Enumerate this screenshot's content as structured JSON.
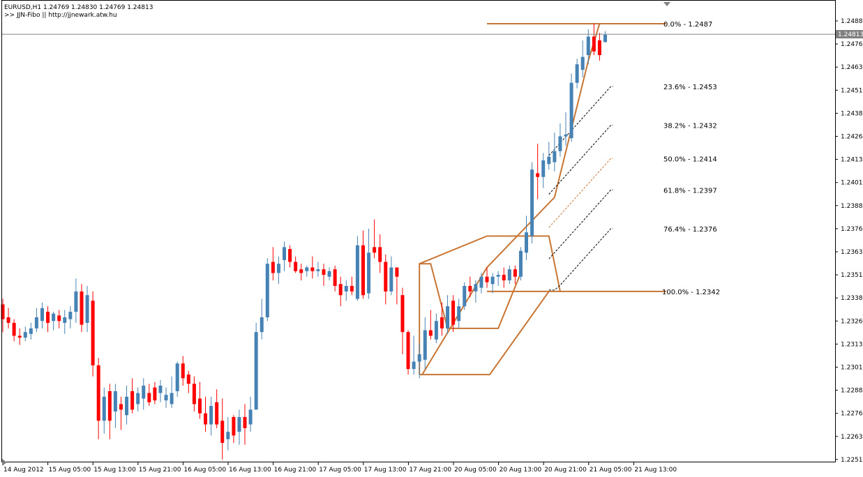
{
  "header": {
    "line1": "EURUSD,H1  1.24769 1.24830 1.24769 1.24813",
    "line2": ">> JJN-Fibo || http://jjnewark.atw.hu"
  },
  "colors": {
    "bull": "#4682B4",
    "bear": "#FF0000",
    "fib_band": "#C87533",
    "fib_dash": "#000000",
    "fib_mid": "#C87533",
    "axis": "#000000",
    "price_line": "#808080"
  },
  "chart_data": {
    "type": "candlestick",
    "symbol": "EURUSD",
    "timeframe": "H1",
    "grid": false,
    "ylim": [
      1.2247,
      1.2491
    ],
    "current_price": 1.24813,
    "y_ticks": [
      1.24885,
      1.2476,
      1.24635,
      1.2451,
      1.24385,
      1.2426,
      1.24135,
      1.2401,
      1.23885,
      1.2376,
      1.23635,
      1.2351,
      1.23385,
      1.2326,
      1.23135,
      1.2301,
      1.22885,
      1.2276,
      1.22635,
      1.2251
    ],
    "y_tick_labels": [
      "1.24885",
      "1.24760",
      "1.24635",
      "1.24510",
      "1.24385",
      "1.24260",
      "1.24135",
      "1.24010",
      "1.23885",
      "1.23760",
      "1.23635",
      "1.23510",
      "1.23385",
      "1.23260",
      "1.23135",
      "1.23010",
      "1.22885",
      "1.22760",
      "1.22635",
      "1.22510"
    ],
    "current_price_label": "1.24813",
    "x_tick_labels": [
      "14 Aug 2012",
      "15 Aug 05:00",
      "15 Aug 13:00",
      "15 Aug 21:00",
      "16 Aug 05:00",
      "16 Aug 13:00",
      "16 Aug 21:00",
      "17 Aug 05:00",
      "17 Aug 13:00",
      "17 Aug 21:00",
      "20 Aug 05:00",
      "20 Aug 13:00",
      "20 Aug 21:00",
      "21 Aug 05:00",
      "21 Aug 13:00"
    ],
    "candles": [
      {
        "o": 1.2335,
        "h": 1.2338,
        "l": 1.232,
        "c": 1.2327
      },
      {
        "o": 1.2328,
        "h": 1.2333,
        "l": 1.2322,
        "c": 1.2325
      },
      {
        "o": 1.2325,
        "h": 1.2327,
        "l": 1.2315,
        "c": 1.2318
      },
      {
        "o": 1.2318,
        "h": 1.2322,
        "l": 1.2313,
        "c": 1.2317
      },
      {
        "o": 1.2317,
        "h": 1.2323,
        "l": 1.2315,
        "c": 1.232
      },
      {
        "o": 1.2319,
        "h": 1.2325,
        "l": 1.2316,
        "c": 1.2322
      },
      {
        "o": 1.2322,
        "h": 1.2333,
        "l": 1.232,
        "c": 1.2328
      },
      {
        "o": 1.2326,
        "h": 1.2336,
        "l": 1.2322,
        "c": 1.2333
      },
      {
        "o": 1.2331,
        "h": 1.2334,
        "l": 1.232,
        "c": 1.2325
      },
      {
        "o": 1.2326,
        "h": 1.2331,
        "l": 1.2321,
        "c": 1.233
      },
      {
        "o": 1.2329,
        "h": 1.2332,
        "l": 1.2322,
        "c": 1.2326
      },
      {
        "o": 1.2325,
        "h": 1.2332,
        "l": 1.2319,
        "c": 1.2328
      },
      {
        "o": 1.2327,
        "h": 1.2334,
        "l": 1.2322,
        "c": 1.2331
      },
      {
        "o": 1.2331,
        "h": 1.2349,
        "l": 1.2325,
        "c": 1.2342
      },
      {
        "o": 1.2342,
        "h": 1.2346,
        "l": 1.232,
        "c": 1.2324
      },
      {
        "o": 1.2325,
        "h": 1.2345,
        "l": 1.232,
        "c": 1.234
      },
      {
        "o": 1.2337,
        "h": 1.2342,
        "l": 1.2296,
        "c": 1.2302
      },
      {
        "o": 1.2302,
        "h": 1.2306,
        "l": 1.2262,
        "c": 1.2272
      },
      {
        "o": 1.2272,
        "h": 1.229,
        "l": 1.2265,
        "c": 1.2285
      },
      {
        "o": 1.2288,
        "h": 1.2292,
        "l": 1.2262,
        "c": 1.2272
      },
      {
        "o": 1.2277,
        "h": 1.2292,
        "l": 1.2268,
        "c": 1.2288
      },
      {
        "o": 1.2281,
        "h": 1.2285,
        "l": 1.2267,
        "c": 1.2278
      },
      {
        "o": 1.2275,
        "h": 1.2291,
        "l": 1.227,
        "c": 1.2285
      },
      {
        "o": 1.2288,
        "h": 1.2295,
        "l": 1.2276,
        "c": 1.2278
      },
      {
        "o": 1.2281,
        "h": 1.229,
        "l": 1.2277,
        "c": 1.2287
      },
      {
        "o": 1.2284,
        "h": 1.2295,
        "l": 1.2278,
        "c": 1.2291
      },
      {
        "o": 1.2287,
        "h": 1.2292,
        "l": 1.228,
        "c": 1.2282
      },
      {
        "o": 1.229,
        "h": 1.2293,
        "l": 1.2281,
        "c": 1.2283
      },
      {
        "o": 1.2287,
        "h": 1.2294,
        "l": 1.2282,
        "c": 1.2291
      },
      {
        "o": 1.2283,
        "h": 1.229,
        "l": 1.2279,
        "c": 1.2286
      },
      {
        "o": 1.2281,
        "h": 1.2296,
        "l": 1.2279,
        "c": 1.2287
      },
      {
        "o": 1.2288,
        "h": 1.2304,
        "l": 1.2285,
        "c": 1.2303
      },
      {
        "o": 1.2303,
        "h": 1.2307,
        "l": 1.2291,
        "c": 1.2295
      },
      {
        "o": 1.2297,
        "h": 1.2299,
        "l": 1.2287,
        "c": 1.2292
      },
      {
        "o": 1.2292,
        "h": 1.2296,
        "l": 1.2277,
        "c": 1.2281
      },
      {
        "o": 1.2284,
        "h": 1.2293,
        "l": 1.2273,
        "c": 1.2276
      },
      {
        "o": 1.2276,
        "h": 1.2285,
        "l": 1.2266,
        "c": 1.227
      },
      {
        "o": 1.227,
        "h": 1.2285,
        "l": 1.2264,
        "c": 1.228
      },
      {
        "o": 1.2282,
        "h": 1.2289,
        "l": 1.2268,
        "c": 1.227
      },
      {
        "o": 1.2272,
        "h": 1.2284,
        "l": 1.2251,
        "c": 1.226
      },
      {
        "o": 1.2262,
        "h": 1.2274,
        "l": 1.2256,
        "c": 1.2266
      },
      {
        "o": 1.2274,
        "h": 1.2275,
        "l": 1.226,
        "c": 1.2264
      },
      {
        "o": 1.2266,
        "h": 1.2278,
        "l": 1.2259,
        "c": 1.2274
      },
      {
        "o": 1.2274,
        "h": 1.2281,
        "l": 1.2259,
        "c": 1.2268
      },
      {
        "o": 1.227,
        "h": 1.2285,
        "l": 1.2266,
        "c": 1.2278
      },
      {
        "o": 1.2278,
        "h": 1.2325,
        "l": 1.2278,
        "c": 1.232
      },
      {
        "o": 1.232,
        "h": 1.2338,
        "l": 1.2316,
        "c": 1.2328
      },
      {
        "o": 1.2328,
        "h": 1.236,
        "l": 1.2326,
        "c": 1.2357
      },
      {
        "o": 1.2358,
        "h": 1.2366,
        "l": 1.2348,
        "c": 1.2352
      },
      {
        "o": 1.2352,
        "h": 1.2361,
        "l": 1.2346,
        "c": 1.2357
      },
      {
        "o": 1.2359,
        "h": 1.2369,
        "l": 1.2353,
        "c": 1.2366
      },
      {
        "o": 1.2365,
        "h": 1.2367,
        "l": 1.2355,
        "c": 1.2358
      },
      {
        "o": 1.2358,
        "h": 1.2361,
        "l": 1.2352,
        "c": 1.2353
      },
      {
        "o": 1.2354,
        "h": 1.2357,
        "l": 1.2348,
        "c": 1.2352
      },
      {
        "o": 1.2353,
        "h": 1.2356,
        "l": 1.235,
        "c": 1.2355
      },
      {
        "o": 1.2355,
        "h": 1.2361,
        "l": 1.2349,
        "c": 1.2353
      },
      {
        "o": 1.2353,
        "h": 1.2358,
        "l": 1.235,
        "c": 1.2354
      },
      {
        "o": 1.2354,
        "h": 1.2357,
        "l": 1.2345,
        "c": 1.2351
      },
      {
        "o": 1.235,
        "h": 1.2355,
        "l": 1.2348,
        "c": 1.2353
      },
      {
        "o": 1.2354,
        "h": 1.2356,
        "l": 1.2342,
        "c": 1.2345
      },
      {
        "o": 1.2346,
        "h": 1.235,
        "l": 1.2334,
        "c": 1.234
      },
      {
        "o": 1.2342,
        "h": 1.2348,
        "l": 1.2337,
        "c": 1.2345
      },
      {
        "o": 1.2345,
        "h": 1.235,
        "l": 1.234,
        "c": 1.2342
      },
      {
        "o": 1.2338,
        "h": 1.2372,
        "l": 1.2337,
        "c": 1.2367
      },
      {
        "o": 1.2367,
        "h": 1.2375,
        "l": 1.2338,
        "c": 1.234
      },
      {
        "o": 1.2341,
        "h": 1.2376,
        "l": 1.2338,
        "c": 1.2363
      },
      {
        "o": 1.2366,
        "h": 1.2381,
        "l": 1.236,
        "c": 1.2363
      },
      {
        "o": 1.2366,
        "h": 1.2373,
        "l": 1.2352,
        "c": 1.2358
      },
      {
        "o": 1.2358,
        "h": 1.2362,
        "l": 1.2335,
        "c": 1.2342
      },
      {
        "o": 1.2342,
        "h": 1.2361,
        "l": 1.234,
        "c": 1.2355
      },
      {
        "o": 1.2355,
        "h": 1.2355,
        "l": 1.2335,
        "c": 1.235
      },
      {
        "o": 1.234,
        "h": 1.2344,
        "l": 1.2308,
        "c": 1.232
      },
      {
        "o": 1.232,
        "h": 1.2321,
        "l": 1.2297,
        "c": 1.23
      },
      {
        "o": 1.23,
        "h": 1.2318,
        "l": 1.2297,
        "c": 1.2304
      },
      {
        "o": 1.2304,
        "h": 1.2314,
        "l": 1.2295,
        "c": 1.2308
      },
      {
        "o": 1.2305,
        "h": 1.2328,
        "l": 1.23,
        "c": 1.2321
      },
      {
        "o": 1.2321,
        "h": 1.2332,
        "l": 1.2316,
        "c": 1.2318
      },
      {
        "o": 1.2316,
        "h": 1.233,
        "l": 1.2314,
        "c": 1.2326
      },
      {
        "o": 1.2328,
        "h": 1.2336,
        "l": 1.2318,
        "c": 1.2322
      },
      {
        "o": 1.2322,
        "h": 1.234,
        "l": 1.2319,
        "c": 1.2334
      },
      {
        "o": 1.2337,
        "h": 1.234,
        "l": 1.232,
        "c": 1.2324
      },
      {
        "o": 1.2326,
        "h": 1.2338,
        "l": 1.2322,
        "c": 1.2334
      },
      {
        "o": 1.2334,
        "h": 1.2347,
        "l": 1.2332,
        "c": 1.2345
      },
      {
        "o": 1.2345,
        "h": 1.235,
        "l": 1.2339,
        "c": 1.2342
      },
      {
        "o": 1.2342,
        "h": 1.2348,
        "l": 1.2336,
        "c": 1.2346
      },
      {
        "o": 1.2344,
        "h": 1.2352,
        "l": 1.2341,
        "c": 1.235
      },
      {
        "o": 1.235,
        "h": 1.2355,
        "l": 1.2344,
        "c": 1.2347
      },
      {
        "o": 1.2346,
        "h": 1.2352,
        "l": 1.2341,
        "c": 1.235
      },
      {
        "o": 1.235,
        "h": 1.2353,
        "l": 1.2345,
        "c": 1.2351
      },
      {
        "o": 1.2351,
        "h": 1.2355,
        "l": 1.2344,
        "c": 1.2348
      },
      {
        "o": 1.2348,
        "h": 1.2356,
        "l": 1.2346,
        "c": 1.2354
      },
      {
        "o": 1.2354,
        "h": 1.2356,
        "l": 1.2346,
        "c": 1.235
      },
      {
        "o": 1.235,
        "h": 1.2366,
        "l": 1.2348,
        "c": 1.2364
      },
      {
        "o": 1.2363,
        "h": 1.2383,
        "l": 1.2359,
        "c": 1.2374
      },
      {
        "o": 1.2372,
        "h": 1.2412,
        "l": 1.2368,
        "c": 1.2408
      },
      {
        "o": 1.2406,
        "h": 1.2422,
        "l": 1.2392,
        "c": 1.2404
      },
      {
        "o": 1.2404,
        "h": 1.2417,
        "l": 1.2398,
        "c": 1.2413
      },
      {
        "o": 1.2411,
        "h": 1.2423,
        "l": 1.2408,
        "c": 1.2415
      },
      {
        "o": 1.2412,
        "h": 1.2428,
        "l": 1.2407,
        "c": 1.2418
      },
      {
        "o": 1.2418,
        "h": 1.2433,
        "l": 1.2415,
        "c": 1.2426
      },
      {
        "o": 1.2426,
        "h": 1.2439,
        "l": 1.2421,
        "c": 1.2427
      },
      {
        "o": 1.2425,
        "h": 1.246,
        "l": 1.2423,
        "c": 1.2455
      },
      {
        "o": 1.2455,
        "h": 1.2468,
        "l": 1.2452,
        "c": 1.2465
      },
      {
        "o": 1.2462,
        "h": 1.2478,
        "l": 1.2458,
        "c": 1.2469
      },
      {
        "o": 1.247,
        "h": 1.2484,
        "l": 1.2465,
        "c": 1.248
      },
      {
        "o": 1.248,
        "h": 1.2487,
        "l": 1.247,
        "c": 1.2472
      },
      {
        "o": 1.2478,
        "h": 1.2482,
        "l": 1.2467,
        "c": 1.247
      },
      {
        "o": 1.2477,
        "h": 1.2483,
        "l": 1.2477,
        "c": 1.2481
      }
    ],
    "fib_levels": [
      {
        "label": "0.0% - 1.2487",
        "value": 1.2487,
        "ratio": 0.0
      },
      {
        "label": "23.6% - 1.2453",
        "value": 1.2453,
        "ratio": 0.236
      },
      {
        "label": "38.2% - 1.2432",
        "value": 1.2432,
        "ratio": 0.382
      },
      {
        "label": "50.0% - 1.2414",
        "value": 1.2414,
        "ratio": 0.5
      },
      {
        "label": "61.8% - 1.2397",
        "value": 1.2397,
        "ratio": 0.618
      },
      {
        "label": "76.4% - 1.2376",
        "value": 1.2376,
        "ratio": 0.764
      },
      {
        "label": "100.0% - 1.2342",
        "value": 1.2342,
        "ratio": 1.0
      }
    ],
    "fib_channel": [
      {
        "from": 0,
        "to": 9,
        "high": null,
        "low": null
      },
      {
        "from": 100,
        "to": 108,
        "high": 1.2487,
        "low": 1.2342
      }
    ]
  }
}
